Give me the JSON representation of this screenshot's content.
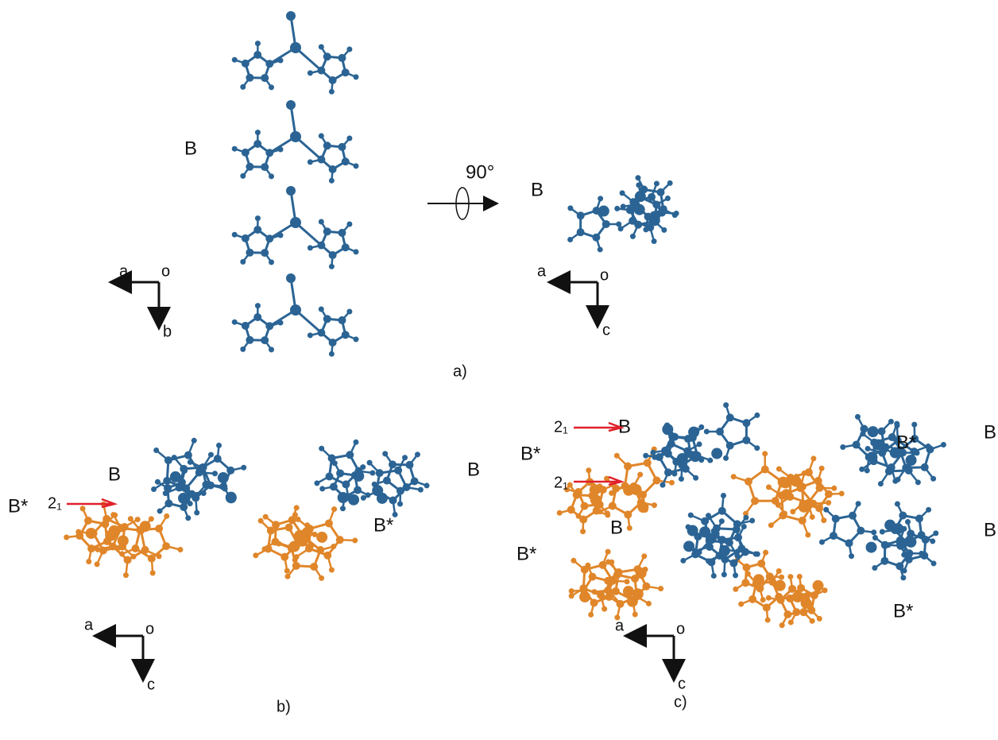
{
  "panels": [
    {
      "caption": "a)",
      "labels": [
        "B",
        "90°",
        "B"
      ],
      "axes": [
        [
          "a",
          "o",
          "b"
        ],
        [
          "a",
          "o",
          "c"
        ]
      ]
    },
    {
      "caption": "b)",
      "labels": [
        "B",
        "B",
        "B*",
        "B*",
        "2₁"
      ],
      "axes": [
        [
          "a",
          "o",
          "c"
        ]
      ]
    },
    {
      "caption": "c)",
      "labels": [
        "B",
        "B",
        "B*",
        "B*",
        "B",
        "B",
        "B*",
        "B*",
        "2₁",
        "2₁"
      ],
      "axes": [
        [
          "a",
          "o",
          "c"
        ]
      ]
    }
  ]
}
